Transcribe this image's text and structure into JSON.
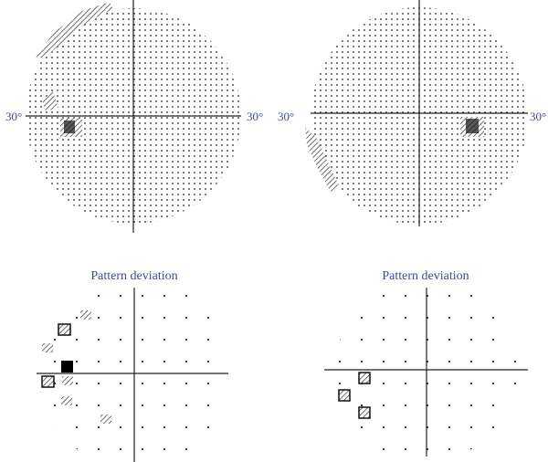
{
  "fields": [
    {
      "left_label": "30°",
      "right_label": "30°"
    },
    {
      "left_label": "30°",
      "right_label": "30°"
    }
  ],
  "pattern_deviation": [
    {
      "title": "Pattern deviation"
    },
    {
      "title": "Pattern deviation"
    }
  ]
}
